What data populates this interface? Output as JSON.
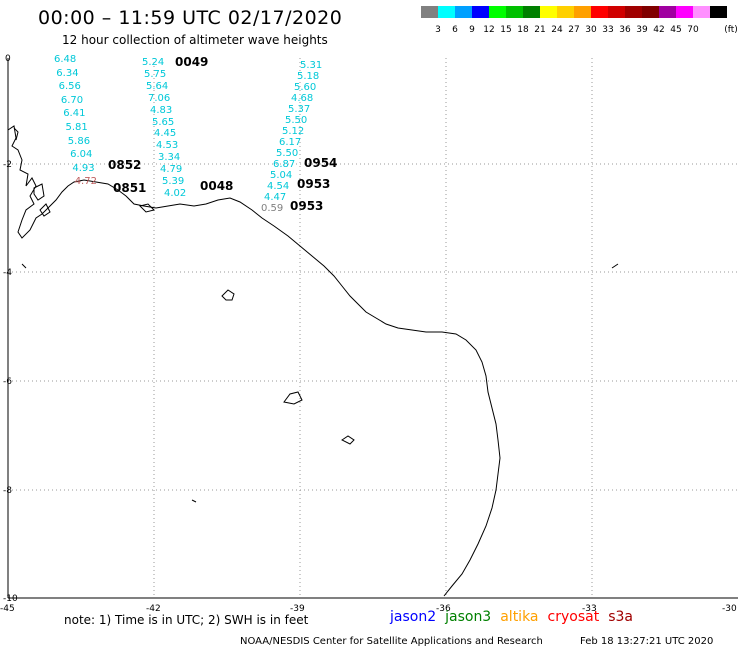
{
  "header": {
    "title": "00:00 – 11:59 UTC 02/17/2020",
    "subtitle": "12 hour collection of altimeter wave heights"
  },
  "scale": {
    "unit": "(ft)",
    "colors": [
      "#808080",
      "#00ffff",
      "#00a0ff",
      "#0000ff",
      "#00ff00",
      "#00c000",
      "#008000",
      "#ffff00",
      "#ffd000",
      "#ffa000",
      "#ff0000",
      "#d00000",
      "#a00000",
      "#800000",
      "#a000a0",
      "#ff00ff",
      "#ff90ff",
      "#000000"
    ],
    "labels": [
      "3",
      "6",
      "9",
      "12",
      "15",
      "18",
      "21",
      "24",
      "27",
      "30",
      "33",
      "36",
      "39",
      "42",
      "45",
      "70"
    ]
  },
  "axes": {
    "y_labels": [
      "0",
      "-2",
      "-4",
      "-6",
      "-8",
      "-10"
    ],
    "x_labels": [
      "-45",
      "-42",
      "-39",
      "-36",
      "-33",
      "-30"
    ]
  },
  "tracks": [
    {
      "name": "track-1",
      "values": [
        "6.48",
        "6.34",
        "6.56",
        "6.70",
        "6.41",
        "5.81",
        "5.86",
        "6.04",
        "4.93",
        "4.72"
      ],
      "color": "#00c8d8"
    },
    {
      "name": "track-2",
      "values": [
        "5.24",
        "5.75",
        "5.64",
        "7.06",
        "4.83",
        "5.65",
        "4.45",
        "4.53",
        "3.34",
        "4.79",
        "5.39",
        "4.02"
      ],
      "color": "#00c8d8"
    },
    {
      "name": "track-3",
      "values": [
        "5.31",
        "5.18",
        "5.60",
        "4.68",
        "5.37",
        "5.50",
        "5.12",
        "6.17",
        "5.50",
        "6.87",
        "5.04",
        "4.54",
        "4.47",
        "0.59"
      ],
      "color": "#00c8d8"
    }
  ],
  "times": [
    {
      "label": "0049",
      "color": "#800000"
    },
    {
      "label": "0852",
      "color": "#ffa000"
    },
    {
      "label": "0851",
      "color": "#ffa000"
    },
    {
      "label": "0048",
      "color": "#800000"
    },
    {
      "label": "0954",
      "color": "#008000"
    },
    {
      "label": "0953",
      "color": "#008000"
    },
    {
      "label": "0953",
      "color": "#008000"
    }
  ],
  "footer": {
    "note": "note:  1) Time is in UTC;  2) SWH is in feet",
    "satellites": [
      {
        "name": "jason2",
        "color": "#0000ff"
      },
      {
        "name": "jason3",
        "color": "#008000"
      },
      {
        "name": "altika",
        "color": "#ffa000"
      },
      {
        "name": "cryosat",
        "color": "#ff0000"
      },
      {
        "name": "s3a",
        "color": "#a00000"
      }
    ],
    "credit": "NOAA/NESDIS Center for Satellite Applications and Research",
    "timestamp": "Feb 18 13:27:21 UTC 2020"
  }
}
